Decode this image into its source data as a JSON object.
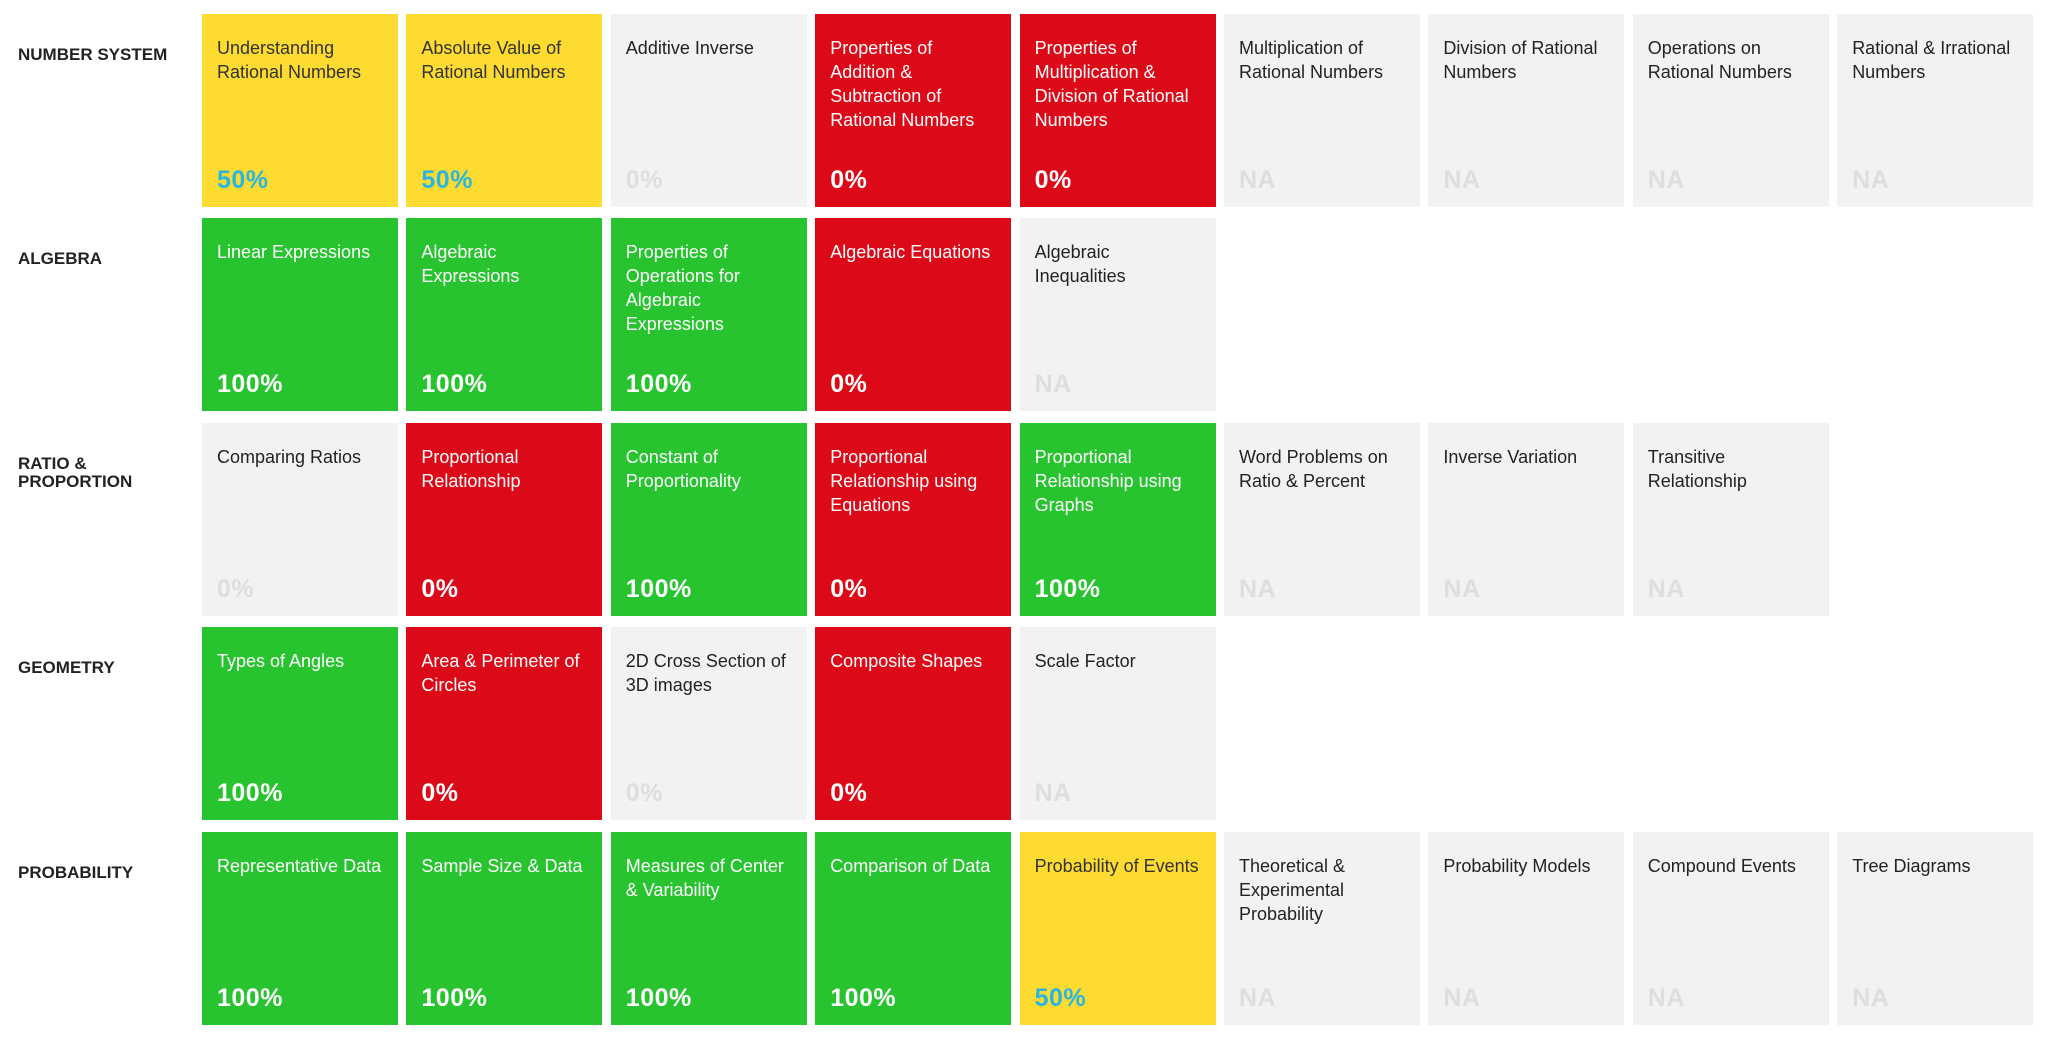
{
  "rows": [
    {
      "label": "NUMBER SYSTEM",
      "tiles": [
        {
          "title": "Understanding Rational Numbers",
          "score": "50%",
          "color": "#fddb30"
        },
        {
          "title": "Absolute Value of Rational Numbers",
          "score": "50%",
          "color": "#fddb30"
        },
        {
          "title": "Additive Inverse",
          "score": "0%",
          "color": "#f2f2f2"
        },
        {
          "title": "Properties of Addition & Subtraction of Rational Numbers",
          "score": "0%",
          "color": "#dc0a18"
        },
        {
          "title": "Properties of Multiplication & Division of Rational Numbers",
          "score": "0%",
          "color": "#dc0a18"
        },
        {
          "title": "Multiplication of Rational Numbers",
          "score": "NA",
          "color": "#f2f2f2"
        },
        {
          "title": "Division of Rational Numbers",
          "score": "NA",
          "color": "#f2f2f2"
        },
        {
          "title": "Operations on Rational Numbers",
          "score": "NA",
          "color": "#f2f2f2"
        },
        {
          "title": "Rational & Irrational Numbers",
          "score": "NA",
          "color": "#f2f2f2"
        }
      ]
    },
    {
      "label": "ALGEBRA",
      "tiles": [
        {
          "title": "Linear Expressions",
          "score": "100%",
          "color": "#27c42f"
        },
        {
          "title": "Algebraic Expressions",
          "score": "100%",
          "color": "#27c42f"
        },
        {
          "title": "Properties of Operations for Algebraic Expressions",
          "score": "100%",
          "color": "#27c42f"
        },
        {
          "title": "Algebraic Equations",
          "score": "0%",
          "color": "#dc0a18"
        },
        {
          "title": "Algebraic Inequalities",
          "score": "NA",
          "color": "#f2f2f2"
        }
      ]
    },
    {
      "label": "RATIO & PROPORTION",
      "tiles": [
        {
          "title": "Comparing Ratios",
          "score": "0%",
          "color": "#f2f2f2"
        },
        {
          "title": "Proportional Relationship",
          "score": "0%",
          "color": "#dc0a18"
        },
        {
          "title": "Constant of Proportionality",
          "score": "100%",
          "color": "#27c42f"
        },
        {
          "title": "Proportional Relationship using Equations",
          "score": "0%",
          "color": "#dc0a18"
        },
        {
          "title": "Proportional Relationship using Graphs",
          "score": "100%",
          "color": "#27c42f"
        },
        {
          "title": "Word Problems on Ratio & Percent",
          "score": "NA",
          "color": "#f2f2f2"
        },
        {
          "title": "Inverse Variation",
          "score": "NA",
          "color": "#f2f2f2"
        },
        {
          "title": "Transitive Relationship",
          "score": "NA",
          "color": "#f2f2f2"
        }
      ]
    },
    {
      "label": "GEOMETRY",
      "tiles": [
        {
          "title": "Types of Angles",
          "score": "100%",
          "color": "#27c42f"
        },
        {
          "title": "Area & Perimeter of Circles",
          "score": "0%",
          "color": "#dc0a18"
        },
        {
          "title": "2D Cross Section of 3D images",
          "score": "0%",
          "color": "#f2f2f2"
        },
        {
          "title": "Composite Shapes",
          "score": "0%",
          "color": "#dc0a18"
        },
        {
          "title": "Scale Factor",
          "score": "NA",
          "color": "#f2f2f2"
        }
      ]
    },
    {
      "label": "PROBABILITY",
      "tiles": [
        {
          "title": "Representative Data",
          "score": "100%",
          "color": "#27c42f"
        },
        {
          "title": "Sample Size & Data",
          "score": "100%",
          "color": "#27c42f"
        },
        {
          "title": "Measures of Center & Variability",
          "score": "100%",
          "color": "#27c42f"
        },
        {
          "title": "Comparison of Data",
          "score": "100%",
          "color": "#27c42f"
        },
        {
          "title": "Probability of Events",
          "score": "50%",
          "color": "#fddb30"
        },
        {
          "title": "Theoretical & Experimental Probability",
          "score": "NA",
          "color": "#f2f2f2"
        },
        {
          "title": "Probability Models",
          "score": "NA",
          "color": "#f2f2f2"
        },
        {
          "title": "Compound Events",
          "score": "NA",
          "color": "#f2f2f2"
        },
        {
          "title": "Tree Diagrams",
          "score": "NA",
          "color": "#f2f2f2"
        }
      ]
    }
  ]
}
